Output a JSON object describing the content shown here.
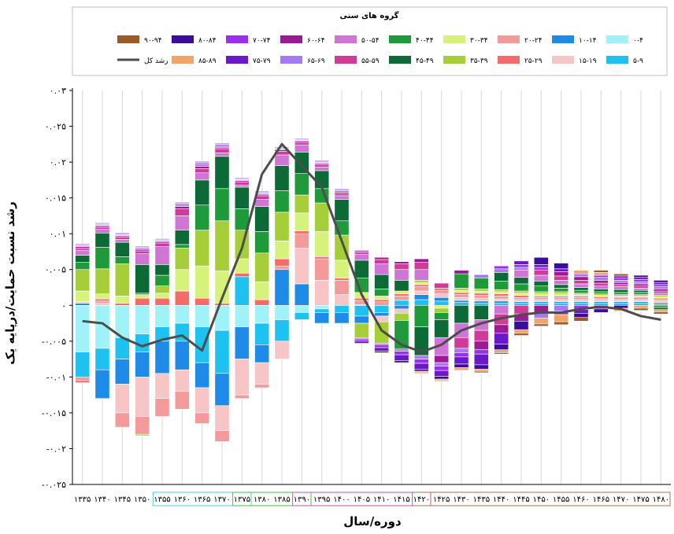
{
  "chart_data": {
    "type": "bar",
    "stacked": true,
    "ylabel": "رشد نسبت حمایت/درپایه یک",
    "xlabel": "دوره/سال",
    "legend_title": "گروه های سنی",
    "legend_position": "top",
    "ylim": [
      -0.025,
      0.03
    ],
    "yticks": [
      {
        "value": 0.03,
        "label": "۰.۰۳"
      },
      {
        "value": 0.025,
        "label": "۰.۰۲۵"
      },
      {
        "value": 0.02,
        "label": "۰.۰۲"
      },
      {
        "value": 0.015,
        "label": "۰.۰۱۵"
      },
      {
        "value": 0.01,
        "label": "۰.۰۱"
      },
      {
        "value": 0.005,
        "label": "۰.۰۰۵"
      },
      {
        "value": 0,
        "label": "۰"
      },
      {
        "value": -0.005,
        "label": "-۰.۰۰۵"
      },
      {
        "value": -0.01,
        "label": "-۰.۰۱"
      },
      {
        "value": -0.015,
        "label": "-۰.۰۱۵"
      },
      {
        "value": -0.02,
        "label": "-۰.۰۲"
      },
      {
        "value": -0.025,
        "label": "-۰.۰۲۵"
      }
    ],
    "categories": [
      "۱۳۳۵",
      "۱۳۴۰",
      "۱۳۴۵",
      "۱۳۵۰",
      "۱۳۵۵",
      "۱۳۶۰",
      "۱۳۶۵",
      "۱۳۷۰",
      "۱۳۷۵",
      "۱۳۸۰",
      "۱۳۸۵",
      "۱۳۹۰",
      "۱۳۹۵",
      "۱۴۰۰",
      "۱۴۰۵",
      "۱۴۱۰",
      "۱۴۱۵",
      "۱۴۲۰",
      "۱۴۲۵",
      "۱۴۳۰",
      "۱۴۳۵",
      "۱۴۴۰",
      "۱۴۴۵",
      "۱۴۵۰",
      "۱۴۵۵",
      "۱۴۶۰",
      "۱۴۶۵",
      "۱۴۷۰",
      "۱۴۷۵",
      "۱۴۸۰"
    ],
    "period_groups": [
      {
        "start": 0,
        "end": 3,
        "color": "#ffffff"
      },
      {
        "start": 4,
        "end": 8,
        "color": "#4ec9e0"
      },
      {
        "start": 8,
        "end": 11,
        "color": "#3cc83c"
      },
      {
        "start": 11,
        "end": 17,
        "color": "#d34fb1"
      },
      {
        "start": 17,
        "end": 29,
        "color": "#b0704a"
      }
    ],
    "series": [
      {
        "name": "۰-۴",
        "color": "#9ff2f7",
        "values": [
          -0.0065,
          -0.006,
          -0.0045,
          -0.004,
          -0.003,
          -0.0025,
          -0.003,
          -0.0035,
          -0.003,
          -0.0025,
          -0.002,
          -0.001,
          -0.0005,
          0,
          0,
          0,
          0,
          0,
          0,
          0,
          0,
          0,
          0,
          0,
          0,
          0,
          0,
          0,
          0,
          0
        ]
      },
      {
        "name": "۵-۹",
        "color": "#1dc2f0",
        "values": [
          -0.0035,
          -0.003,
          -0.003,
          -0.0025,
          -0.002,
          -0.0025,
          -0.005,
          -0.006,
          0.004,
          -0.003,
          -0.003,
          -0.001,
          -0.0005,
          -0.001,
          -0.0015,
          -0.001,
          0.0007,
          0.0008,
          0.0006,
          0.0004,
          0.0003,
          0.0003,
          0.0003,
          0.0003,
          0.0003,
          0.0003,
          0.0003,
          0.0003,
          0.0003,
          0.0002
        ]
      },
      {
        "name": "۱۰-۱۴",
        "color": "#1f8be8",
        "values": [
          0.0003,
          -0.004,
          -0.0035,
          -0.0035,
          -0.0045,
          -0.004,
          -0.0035,
          -0.0045,
          -0.0045,
          -0.0025,
          0.005,
          0.003,
          -0.0015,
          -0.0015,
          -0.001,
          -0.0005,
          -0.0005,
          0.0007,
          0.0005,
          0.0003,
          0.0003,
          0.0003,
          0.0002,
          0.0002,
          0.0002,
          0.0002,
          0.0002,
          0.0002,
          0.0002,
          0.0002
        ]
      },
      {
        "name": "۱۵-۱۹",
        "color": "#f7c5c5",
        "values": [
          0.0002,
          0.0003,
          -0.004,
          -0.0055,
          -0.0035,
          -0.003,
          -0.0035,
          -0.0035,
          -0.005,
          -0.003,
          -0.0025,
          0.005,
          0.0035,
          0.0015,
          0.0001,
          -0.0008,
          -0.0006,
          0.0005,
          0.0005,
          0.0004,
          0.0004,
          0.0003,
          0.0003,
          0.0003,
          0.0003,
          0.0003,
          0.0003,
          0.0002,
          0.0002,
          0.0002
        ]
      },
      {
        "name": "۲۰-۲۴",
        "color": "#f59a9a",
        "values": [
          -0.0005,
          0.0003,
          -0.002,
          -0.0025,
          -0.0025,
          -0.0025,
          -0.0015,
          -0.0015,
          -0.0005,
          -0.0005,
          0.0005,
          0.002,
          0.003,
          0.002,
          0.0006,
          0.0005,
          0.0006,
          0.0006,
          0.0005,
          0.0004,
          0.0004,
          0.0004,
          0.0003,
          0.0003,
          0.0003,
          0.0003,
          0.0002,
          0.0002,
          0.0002,
          0.0002
        ]
      },
      {
        "name": "۲۵-۲۹",
        "color": "#f76a6a",
        "values": [
          -0.0003,
          0.0003,
          0.0003,
          0.001,
          0.001,
          0.002,
          0.001,
          0.0003,
          0.0005,
          0.0008,
          0.001,
          0.0004,
          0.0003,
          0.0003,
          0.0003,
          0.0003,
          0.0003,
          0.0003,
          0.0003,
          0.0003,
          0.0003,
          0.0003,
          0.0003,
          0.0002,
          0.0002,
          0.0002,
          0.0002,
          0.0002,
          0.0002,
          0.0002
        ]
      },
      {
        "name": "۳۰-۳۴",
        "color": "#d7f27a",
        "values": [
          0.0015,
          0.0007,
          0.001,
          0.0005,
          0.0007,
          0.003,
          0.0045,
          0.0045,
          0.002,
          0.0025,
          0.0025,
          0.0025,
          0.0035,
          0.0025,
          0.0008,
          0.0005,
          0.0004,
          0.0003,
          -0.0004,
          0.0003,
          0.0003,
          0.0003,
          0.0003,
          0.0003,
          0.0003,
          0.0002,
          0.0002,
          0.0002,
          0.0002,
          0.0002
        ]
      },
      {
        "name": "۳۵-۳۹",
        "color": "#a6ce39",
        "values": [
          0.003,
          0.0035,
          0.0045,
          -0.0002,
          0.001,
          0.003,
          0.005,
          0.007,
          0.004,
          0.004,
          0.004,
          0.0025,
          0.004,
          0.0035,
          -0.002,
          -0.003,
          -0.001,
          0.0003,
          -0.0006,
          0.0003,
          0.0003,
          0.0003,
          0.0003,
          0.0003,
          0.0003,
          0.0002,
          0.0002,
          0.0002,
          0.0002,
          0.0002
        ]
      },
      {
        "name": "۴۰-۴۴",
        "color": "#1e9a3a",
        "values": [
          0.001,
          0.003,
          0.001,
          0.0002,
          0.0015,
          0.0005,
          0.0035,
          0.0045,
          0.003,
          0.003,
          0.003,
          0.003,
          0.002,
          0.002,
          0.002,
          0.001,
          -0.004,
          -0.003,
          -0.001,
          0.002,
          0.0015,
          0.0012,
          0.001,
          0.0008,
          0.0005,
          0.0004,
          0.0003,
          0.0003,
          0.0003,
          -0.0003
        ]
      },
      {
        "name": "۴۵-۴۹",
        "color": "#0b6a35",
        "values": [
          0.001,
          0.002,
          0.002,
          0.004,
          0.0015,
          0.002,
          0.0035,
          0.0045,
          0.003,
          0.0035,
          0.0035,
          0.003,
          0.0025,
          0.003,
          0.0025,
          0.002,
          0.0015,
          -0.004,
          -0.0025,
          -0.0025,
          -0.002,
          0.0012,
          0.0009,
          0.0007,
          0.0005,
          0.0004,
          0.0004,
          0.0004,
          0.0003,
          -0.0003
        ]
      },
      {
        "name": "۵۰-۵۴",
        "color": "#cf75d6",
        "values": [
          0.0007,
          0.0005,
          0.0004,
          0.0015,
          0.0025,
          0.002,
          0.001,
          0.0005,
          0.0003,
          0.001,
          0.0015,
          0.001,
          0.0005,
          0.0005,
          0.0008,
          0.0015,
          0.0015,
          0.0015,
          -0.0025,
          -0.002,
          -0.0015,
          -0.0012,
          0.001,
          0.0008,
          0.0006,
          0.0005,
          0.0004,
          0.0004,
          0.0003,
          0.0003
        ]
      },
      {
        "name": "۵۵-۵۹",
        "color": "#d03b97",
        "values": [
          0.0003,
          0.0003,
          0.0003,
          0.0004,
          0.0005,
          0.001,
          0.0006,
          0.0005,
          0.0004,
          0.0005,
          0.0005,
          0.0003,
          0.0003,
          0.0003,
          0.0003,
          0.0006,
          0.0008,
          0.001,
          0.0007,
          -0.0015,
          -0.0015,
          -0.0015,
          -0.0012,
          0.0007,
          0.0006,
          0.0005,
          0.0004,
          0.0003,
          0.0003,
          0.0003
        ]
      },
      {
        "name": "۶۰-۶۴",
        "color": "#9b1b95",
        "values": [
          0.0002,
          0.0002,
          0.0002,
          0.0002,
          0.0002,
          0.0003,
          0.0003,
          0.0002,
          0.0002,
          0.0002,
          0.0002,
          0.0002,
          0.0002,
          0.0002,
          0.0002,
          0.0003,
          0.0003,
          0.0005,
          -0.001,
          0.0005,
          -0.0012,
          -0.0012,
          -0.001,
          -0.001,
          0.0006,
          0.0005,
          0.0004,
          0.0003,
          0.0003,
          0.0003
        ]
      },
      {
        "name": "۶۵-۶۹",
        "color": "#a678f2",
        "values": [
          0.0001,
          0.0001,
          0.0001,
          0.0002,
          0.0001,
          0.0002,
          0.0003,
          0.0002,
          0.0001,
          0.0001,
          0.0001,
          0.0001,
          0.0001,
          0.0002,
          -0.0002,
          -0.0002,
          -0.0003,
          -0.0005,
          -0.0005,
          -0.0006,
          0.0005,
          0.0005,
          0.0004,
          -0.0008,
          -0.0008,
          0.0004,
          0.0004,
          0.0003,
          0.0003,
          0.0003
        ]
      },
      {
        "name": "۷۰-۷۴",
        "color": "#9b2ff0",
        "values": [
          0.0001,
          0.0001,
          0.0001,
          0.0001,
          0.0001,
          0.0002,
          0.0002,
          0.0002,
          0.0001,
          0.0001,
          0.0001,
          0.0001,
          0.0001,
          0.0001,
          -0.0003,
          -0.0004,
          -0.0005,
          -0.0006,
          -0.0006,
          -0.0006,
          -0.0006,
          0.0004,
          0.0004,
          0.0004,
          -0.0005,
          -0.0006,
          0.0003,
          0.0003,
          0.0003,
          0.0003
        ]
      },
      {
        "name": "۷۵-۷۹",
        "color": "#6a18c9",
        "values": [
          0.0001,
          0.0001,
          0.0001,
          0.0001,
          0.0001,
          0.0001,
          0.0001,
          0.0001,
          0.0001,
          0.0001,
          0.0001,
          0.0001,
          0.0001,
          0.0001,
          -0.0003,
          -0.0005,
          -0.0008,
          -0.0008,
          -0.0008,
          -0.001,
          -0.0015,
          -0.0015,
          0.0005,
          0.0004,
          0.0004,
          -0.0005,
          -0.0005,
          0.0003,
          0.0003,
          0.0003
        ]
      },
      {
        "name": "۸۰-۸۴",
        "color": "#3c0d9a",
        "values": [
          0.0001,
          0.0001,
          0.0001,
          0.0001,
          0.0001,
          0.0001,
          0.0001,
          0.0001,
          0.0001,
          0.0001,
          0.0001,
          0.0001,
          0.0001,
          0.0001,
          0.0001,
          -0.0002,
          -0.0003,
          -0.0003,
          -0.0004,
          -0.0005,
          -0.0006,
          -0.0008,
          -0.0012,
          0.001,
          0.0008,
          -0.0006,
          -0.0005,
          -0.0004,
          0.0003,
          0.0003
        ]
      },
      {
        "name": "۸۵-۸۹",
        "color": "#f0a46a",
        "values": [
          0,
          0,
          0,
          0,
          0,
          0,
          0,
          0,
          0,
          0,
          0,
          0,
          0,
          0,
          0,
          -0.0001,
          -0.0001,
          -0.0002,
          -0.0002,
          -0.0003,
          -0.0003,
          -0.0004,
          -0.0005,
          -0.0008,
          -0.001,
          0.0005,
          0.0004,
          -0.0004,
          -0.0004,
          -0.0003
        ]
      },
      {
        "name": "۹۰-۹۴",
        "color": "#9b5a2a",
        "values": [
          0,
          0,
          0,
          0,
          0,
          0,
          0,
          0,
          0,
          0,
          0,
          0,
          0,
          0,
          0,
          0,
          0,
          -0.0001,
          -0.0001,
          -0.0001,
          -0.0002,
          -0.0002,
          -0.0003,
          -0.0003,
          -0.0004,
          -0.0005,
          0.0003,
          0.0003,
          -0.0003,
          -0.0003
        ]
      }
    ],
    "total": {
      "name": "رشد کل",
      "color": "#4d4d4d",
      "values": [
        -0.0022,
        -0.0025,
        -0.0045,
        -0.0057,
        -0.0048,
        -0.0042,
        -0.0063,
        0.001,
        0.008,
        0.0183,
        0.0225,
        0.0195,
        0.0165,
        0.009,
        0.0015,
        -0.0035,
        -0.0055,
        -0.0065,
        -0.0055,
        -0.0035,
        -0.0025,
        -0.0018,
        -0.0013,
        -0.001,
        -0.001,
        -0.0005,
        -0.0002,
        -0.0005,
        -0.0015,
        -0.002
      ]
    }
  }
}
